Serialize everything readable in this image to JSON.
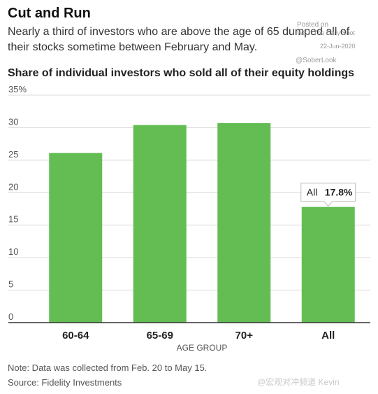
{
  "header": {
    "title": "Cut and Run",
    "subtitle": "Nearly a third of investors who are above the age of 65 dumped all of their stocks sometime between February and May."
  },
  "stamp": {
    "posted": "Posted on",
    "source": "WSJ: The Daily Shot",
    "date": "22-Jun-2020",
    "handle": "@SoberLook"
  },
  "chart_data": {
    "type": "bar",
    "title": "Share of individual investors who sold all of their equity holdings",
    "xlabel": "AGE GROUP",
    "ylabel": "",
    "categories": [
      "60-64",
      "65-69",
      "70+",
      "All"
    ],
    "values": [
      26.1,
      30.4,
      30.7,
      17.8
    ],
    "ylim": [
      0,
      35
    ],
    "yticks": [
      0,
      5,
      10,
      15,
      20,
      25,
      30,
      35
    ],
    "ytick_labels": [
      "0",
      "5",
      "10",
      "15",
      "20",
      "25",
      "30",
      "35%"
    ],
    "grid": true,
    "annotation": {
      "category": "All",
      "label": "All",
      "value_text": "17.8%"
    },
    "colors": {
      "bar": "#63bd53",
      "grid": "#d9d9d9",
      "axis": "#333333"
    }
  },
  "footer": {
    "note": "Note: Data was collected from Feb. 20 to May 15.",
    "source": "Source: Fidelity Investments",
    "watermark": "@宏观对冲频道 Kevin"
  }
}
